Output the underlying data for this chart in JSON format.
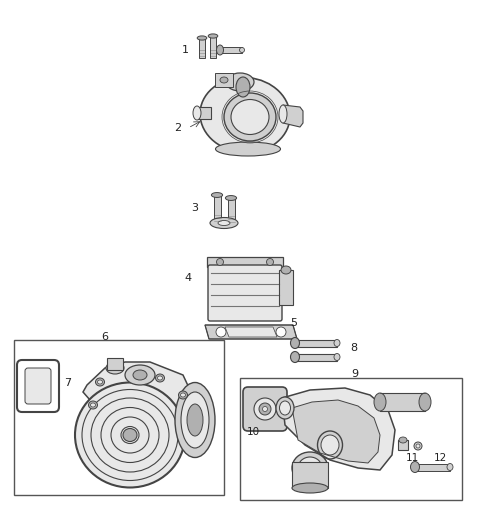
{
  "bg_color": "#ffffff",
  "fig_width": 4.8,
  "fig_height": 5.12,
  "dpi": 100,
  "lc": "#444444",
  "fc_light": "#e8e8e8",
  "fc_mid": "#d0d0d0",
  "fc_dark": "#b0b0b0",
  "label_color": "#222222",
  "box_color": "#555555"
}
